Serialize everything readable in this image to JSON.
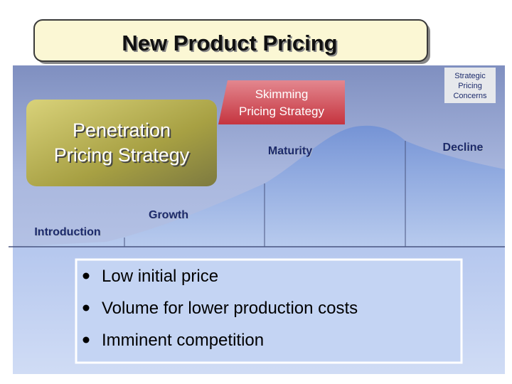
{
  "title": "New Product Pricing",
  "corner_note": {
    "lines": [
      "Strategic",
      "Pricing",
      "Concerns"
    ]
  },
  "strategies": [
    {
      "lines": [
        "Penetration",
        "Pricing Strategy"
      ]
    },
    {
      "lines": [
        "Skimming",
        "Pricing Strategy"
      ]
    }
  ],
  "stages": [
    "Introduction",
    "Growth",
    "Maturity",
    "Decline"
  ],
  "bullets": [
    "Low initial price",
    "Volume for lower production costs",
    "Imminent competition"
  ]
}
